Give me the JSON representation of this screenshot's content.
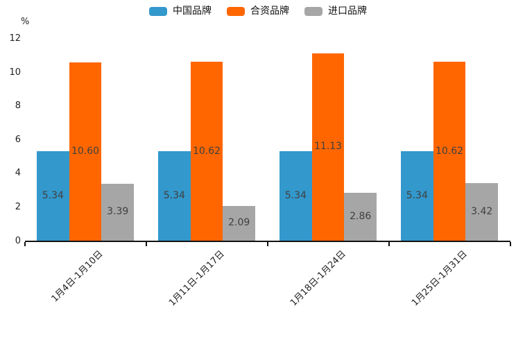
{
  "colors": {
    "series_blue": "#3398CC",
    "series_orange": "#FF6600",
    "series_gray": "#A6A6A6",
    "value_label": "#404040",
    "axis": "#111111",
    "tick_label": "#222222"
  },
  "chart_data": {
    "type": "bar",
    "title": "",
    "ylabel": "%",
    "categories": [
      "1月4日-1月10日",
      "1月11日-1月17日",
      "1月18日-1月24日",
      "1月25日-1月31日"
    ],
    "series": [
      {
        "name": "中国品牌",
        "color": "#3398CC",
        "values": [
          5.34,
          5.34,
          5.34,
          5.34
        ]
      },
      {
        "name": "合资品牌",
        "color": "#FF6600",
        "values": [
          10.6,
          10.62,
          11.13,
          10.62
        ]
      },
      {
        "name": "进口品牌",
        "color": "#A6A6A6",
        "values": [
          3.39,
          2.09,
          2.86,
          3.42
        ]
      }
    ],
    "yticks": [
      0,
      2,
      4,
      6,
      8,
      10,
      12
    ],
    "ylim": [
      0,
      12
    ],
    "grid": false,
    "legend_position": "top",
    "value_label_decimals": 2,
    "x_label_rotation_deg": 45
  }
}
